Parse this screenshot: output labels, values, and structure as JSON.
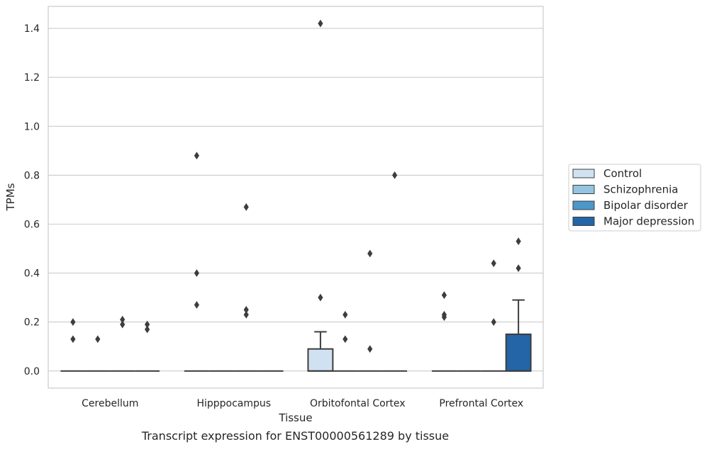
{
  "caption": "Transcript expression for ENST00000561289 by tissue",
  "chart_data": {
    "type": "box",
    "xlabel": "Tissue",
    "ylabel": "TPMs",
    "ylim": [
      -0.07,
      1.49
    ],
    "yticks": [
      0.0,
      0.2,
      0.4,
      0.6,
      0.8,
      1.0,
      1.2,
      1.4
    ],
    "ytick_labels": [
      "0.0",
      "0.2",
      "0.4",
      "0.6",
      "0.8",
      "1.0",
      "1.2",
      "1.4"
    ],
    "grid": "horizontal",
    "legend_position": "right",
    "categories": [
      "Cerebellum",
      "Hipppocampus",
      "Orbitofontal Cortex",
      "Prefrontal Cortex"
    ],
    "series": [
      {
        "name": "Control",
        "color": "#d0e1f2",
        "boxes": [
          {
            "q1": 0,
            "median": 0,
            "q3": 0,
            "whisker_low": 0,
            "whisker_high": 0,
            "outliers": [
              0.2,
              0.13
            ]
          },
          {
            "q1": 0,
            "median": 0,
            "q3": 0,
            "whisker_low": 0,
            "whisker_high": 0,
            "outliers": [
              0.88,
              0.4,
              0.27
            ]
          },
          {
            "q1": 0,
            "median": 0,
            "q3": 0.09,
            "whisker_low": 0,
            "whisker_high": 0.16,
            "outliers": [
              1.42,
              0.3
            ]
          },
          {
            "q1": 0,
            "median": 0,
            "q3": 0,
            "whisker_low": 0,
            "whisker_high": 0,
            "outliers": [
              0.31,
              0.23,
              0.22
            ]
          }
        ]
      },
      {
        "name": "Schizophrenia",
        "color": "#94c4df",
        "boxes": [
          {
            "q1": 0,
            "median": 0,
            "q3": 0,
            "whisker_low": 0,
            "whisker_high": 0,
            "outliers": [
              0.13
            ]
          },
          {
            "q1": 0,
            "median": 0,
            "q3": 0,
            "whisker_low": 0,
            "whisker_high": 0,
            "outliers": []
          },
          {
            "q1": 0,
            "median": 0,
            "q3": 0,
            "whisker_low": 0,
            "whisker_high": 0,
            "outliers": [
              0.23,
              0.13
            ]
          },
          {
            "q1": 0,
            "median": 0,
            "q3": 0,
            "whisker_low": 0,
            "whisker_high": 0,
            "outliers": []
          }
        ]
      },
      {
        "name": "Bipolar disorder",
        "color": "#4a98c9",
        "boxes": [
          {
            "q1": 0,
            "median": 0,
            "q3": 0,
            "whisker_low": 0,
            "whisker_high": 0,
            "outliers": [
              0.21,
              0.19
            ]
          },
          {
            "q1": 0,
            "median": 0,
            "q3": 0,
            "whisker_low": 0,
            "whisker_high": 0,
            "outliers": [
              0.67,
              0.25,
              0.23
            ]
          },
          {
            "q1": 0,
            "median": 0,
            "q3": 0,
            "whisker_low": 0,
            "whisker_high": 0,
            "outliers": [
              0.48,
              0.09
            ]
          },
          {
            "q1": 0,
            "median": 0,
            "q3": 0,
            "whisker_low": 0,
            "whisker_high": 0,
            "outliers": [
              0.44,
              0.2
            ]
          }
        ]
      },
      {
        "name": "Major depression",
        "color": "#2365a7",
        "boxes": [
          {
            "q1": 0,
            "median": 0,
            "q3": 0,
            "whisker_low": 0,
            "whisker_high": 0,
            "outliers": [
              0.19,
              0.17
            ]
          },
          {
            "q1": 0,
            "median": 0,
            "q3": 0,
            "whisker_low": 0,
            "whisker_high": 0,
            "outliers": []
          },
          {
            "q1": 0,
            "median": 0,
            "q3": 0,
            "whisker_low": 0,
            "whisker_high": 0,
            "outliers": [
              0.8
            ]
          },
          {
            "q1": 0,
            "median": 0,
            "q3": 0.15,
            "whisker_low": 0,
            "whisker_high": 0.29,
            "outliers": [
              0.53,
              0.42
            ]
          }
        ]
      }
    ]
  }
}
